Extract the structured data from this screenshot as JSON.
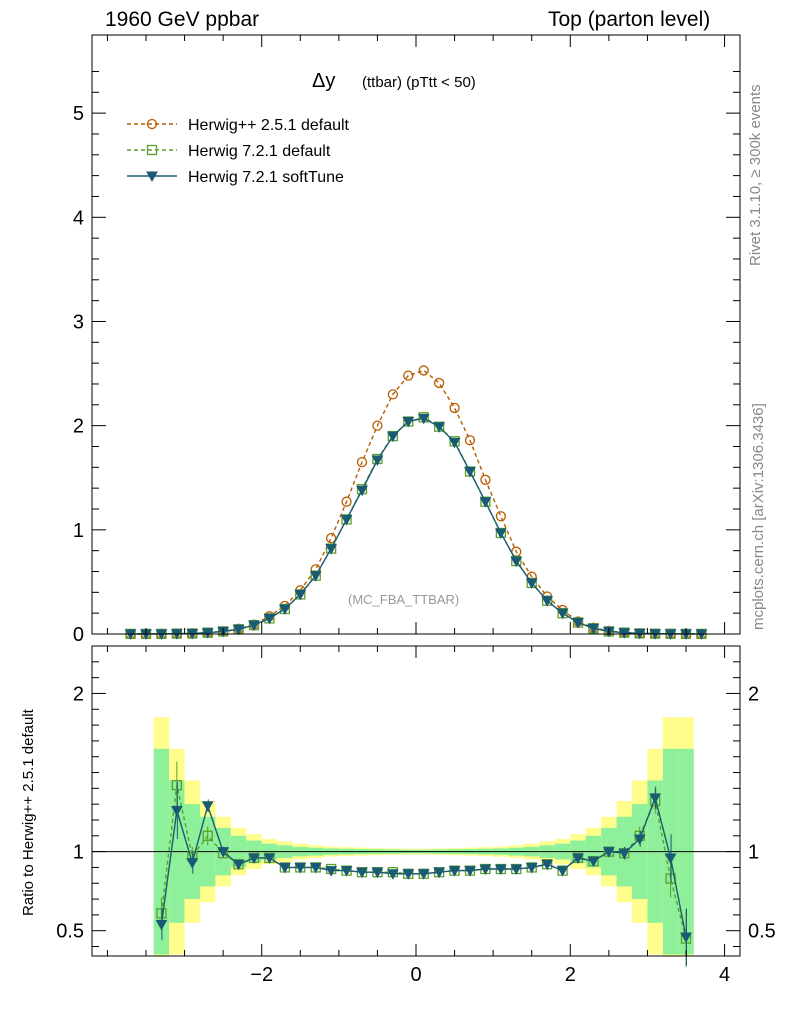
{
  "header": {
    "left": "1960 GeV ppbar",
    "right": "Top (parton level)"
  },
  "side": {
    "rivet": "Rivet 3.1.10, ≥ 300k events",
    "mcplots": "mcplots.cern.ch [arXiv:1306.3436]"
  },
  "chart_data": [
    {
      "type": "line",
      "title_main": "Δy",
      "title_sub": "(ttbar) (pTtt < 50)",
      "watermark": "(MC_FBA_TTBAR)",
      "xlim": [
        -4.2,
        4.2
      ],
      "ylim": [
        0,
        5.75
      ],
      "xticks": [
        "−2",
        "0",
        "2",
        "4"
      ],
      "yticks": [
        "0",
        "1",
        "2",
        "3",
        "4",
        "5"
      ],
      "x": [
        -3.7,
        -3.5,
        -3.3,
        -3.1,
        -2.9,
        -2.7,
        -2.5,
        -2.3,
        -2.1,
        -1.9,
        -1.7,
        -1.5,
        -1.3,
        -1.1,
        -0.9,
        -0.7,
        -0.5,
        -0.3,
        -0.1,
        0.1,
        0.3,
        0.5,
        0.7,
        0.9,
        1.1,
        1.3,
        1.5,
        1.7,
        1.9,
        2.1,
        2.3,
        2.5,
        2.7,
        2.9,
        3.1,
        3.3,
        3.5,
        3.7
      ],
      "series": [
        {
          "name": "Herwig++ 2.5.1 default",
          "color": "#b85c00",
          "marker": "circle",
          "dash": true,
          "values": [
            0.001,
            0.001,
            0.002,
            0.003,
            0.006,
            0.012,
            0.025,
            0.05,
            0.09,
            0.17,
            0.27,
            0.42,
            0.62,
            0.92,
            1.27,
            1.65,
            2.0,
            2.3,
            2.48,
            2.53,
            2.41,
            2.17,
            1.86,
            1.48,
            1.13,
            0.79,
            0.55,
            0.36,
            0.23,
            0.12,
            0.06,
            0.03,
            0.013,
            0.006,
            0.003,
            0.002,
            0.001,
            0.001
          ]
        },
        {
          "name": "Herwig 7.2.1 default",
          "color": "#5aa02c",
          "marker": "square",
          "dash": true,
          "values": [
            0.001,
            0.001,
            0.001,
            0.004,
            0.005,
            0.013,
            0.025,
            0.045,
            0.085,
            0.15,
            0.24,
            0.38,
            0.56,
            0.82,
            1.1,
            1.39,
            1.68,
            1.9,
            2.04,
            2.08,
            1.99,
            1.85,
            1.56,
            1.27,
            0.97,
            0.7,
            0.49,
            0.32,
            0.2,
            0.11,
            0.055,
            0.025,
            0.013,
            0.006,
            0.003,
            0.002,
            0.001,
            0.001
          ]
        },
        {
          "name": "Herwig 7.2.1 softTune",
          "color": "#1a5a75",
          "marker": "triangle-down",
          "dash": false,
          "values": [
            0.001,
            0.001,
            0.001,
            0.004,
            0.005,
            0.013,
            0.025,
            0.045,
            0.085,
            0.15,
            0.24,
            0.38,
            0.56,
            0.82,
            1.1,
            1.38,
            1.67,
            1.9,
            2.04,
            2.07,
            1.99,
            1.84,
            1.56,
            1.27,
            0.97,
            0.7,
            0.49,
            0.32,
            0.2,
            0.11,
            0.055,
            0.025,
            0.013,
            0.006,
            0.003,
            0.002,
            0.001,
            0.001
          ]
        }
      ]
    },
    {
      "type": "line",
      "ylabel": "Ratio to Herwig++ 2.5.1 default",
      "xlim": [
        -4.2,
        4.2
      ],
      "ylim": [
        0.34,
        2.3
      ],
      "xticks": [
        "−2",
        "0",
        "2",
        "4"
      ],
      "yticks": [
        "0.5",
        "1",
        "2"
      ],
      "x": [
        -3.3,
        -3.1,
        -2.9,
        -2.7,
        -2.5,
        -2.3,
        -2.1,
        -1.9,
        -1.7,
        -1.5,
        -1.3,
        -1.1,
        -0.9,
        -0.7,
        -0.5,
        -0.3,
        -0.1,
        0.1,
        0.3,
        0.5,
        0.7,
        0.9,
        1.1,
        1.3,
        1.5,
        1.7,
        1.9,
        2.1,
        2.3,
        2.5,
        2.7,
        2.9,
        3.1,
        3.3,
        3.5
      ],
      "band_edges": [
        -3.4,
        -3.2,
        -3.0,
        -2.8,
        -2.6,
        -2.4,
        -2.2,
        -2.0,
        -1.8,
        -1.6,
        -1.4,
        -1.2,
        -1.0,
        -0.8,
        -0.6,
        -0.4,
        -0.2,
        0.0,
        0.2,
        0.4,
        0.6,
        0.8,
        1.0,
        1.2,
        1.4,
        1.6,
        1.8,
        2.0,
        2.2,
        2.4,
        2.6,
        2.8,
        3.0,
        3.2,
        3.4,
        3.6
      ],
      "band_green_half": [
        0.65,
        0.45,
        0.3,
        0.22,
        0.15,
        0.1,
        0.07,
        0.05,
        0.04,
        0.03,
        0.025,
        0.02,
        0.018,
        0.016,
        0.014,
        0.013,
        0.012,
        0.012,
        0.013,
        0.014,
        0.016,
        0.018,
        0.02,
        0.025,
        0.03,
        0.04,
        0.05,
        0.07,
        0.1,
        0.15,
        0.22,
        0.3,
        0.45,
        0.65,
        0.65
      ],
      "band_yellow_half": [
        0.85,
        0.65,
        0.45,
        0.32,
        0.22,
        0.15,
        0.11,
        0.08,
        0.065,
        0.05,
        0.04,
        0.032,
        0.028,
        0.025,
        0.022,
        0.02,
        0.018,
        0.018,
        0.02,
        0.022,
        0.025,
        0.028,
        0.032,
        0.04,
        0.05,
        0.065,
        0.08,
        0.11,
        0.15,
        0.22,
        0.32,
        0.45,
        0.65,
        0.85,
        0.85
      ],
      "series": [
        {
          "name": "Herwig 7.2.1 default",
          "color": "#5aa02c",
          "marker": "square",
          "dash": true,
          "values": [
            0.61,
            1.42,
            0.97,
            1.1,
            0.99,
            0.92,
            0.96,
            0.96,
            0.9,
            0.9,
            0.9,
            0.89,
            0.88,
            0.87,
            0.87,
            0.87,
            0.86,
            0.86,
            0.87,
            0.88,
            0.88,
            0.89,
            0.89,
            0.89,
            0.9,
            0.92,
            0.88,
            0.96,
            0.94,
            1.0,
            0.99,
            1.1,
            1.32,
            0.83,
            0.45
          ],
          "err": [
            0.1,
            0.15,
            0.06,
            0.06,
            0.03,
            0.02,
            0.01,
            0.01,
            0.01,
            0.01,
            0.01,
            0.01,
            0.01,
            0.01,
            0.01,
            0.01,
            0.01,
            0.01,
            0.01,
            0.01,
            0.01,
            0.01,
            0.01,
            0.01,
            0.01,
            0.01,
            0.01,
            0.01,
            0.02,
            0.03,
            0.04,
            0.06,
            0.08,
            0.12,
            0.18
          ]
        },
        {
          "name": "Herwig 7.2.1 softTune",
          "color": "#1a5a75",
          "marker": "triangle-down",
          "dash": false,
          "values": [
            0.54,
            1.26,
            0.93,
            1.29,
            1.0,
            0.92,
            0.96,
            0.96,
            0.9,
            0.9,
            0.9,
            0.88,
            0.88,
            0.87,
            0.87,
            0.86,
            0.86,
            0.86,
            0.87,
            0.88,
            0.88,
            0.89,
            0.89,
            0.89,
            0.9,
            0.92,
            0.88,
            0.96,
            0.94,
            1.0,
            0.99,
            1.08,
            1.34,
            0.96,
            0.46
          ],
          "err": [
            0.1,
            0.18,
            0.07,
            0.04,
            0.03,
            0.02,
            0.01,
            0.01,
            0.01,
            0.01,
            0.01,
            0.01,
            0.01,
            0.01,
            0.01,
            0.01,
            0.01,
            0.01,
            0.01,
            0.01,
            0.01,
            0.01,
            0.01,
            0.01,
            0.01,
            0.01,
            0.01,
            0.01,
            0.02,
            0.03,
            0.04,
            0.05,
            0.07,
            0.15,
            0.18
          ]
        }
      ]
    }
  ]
}
